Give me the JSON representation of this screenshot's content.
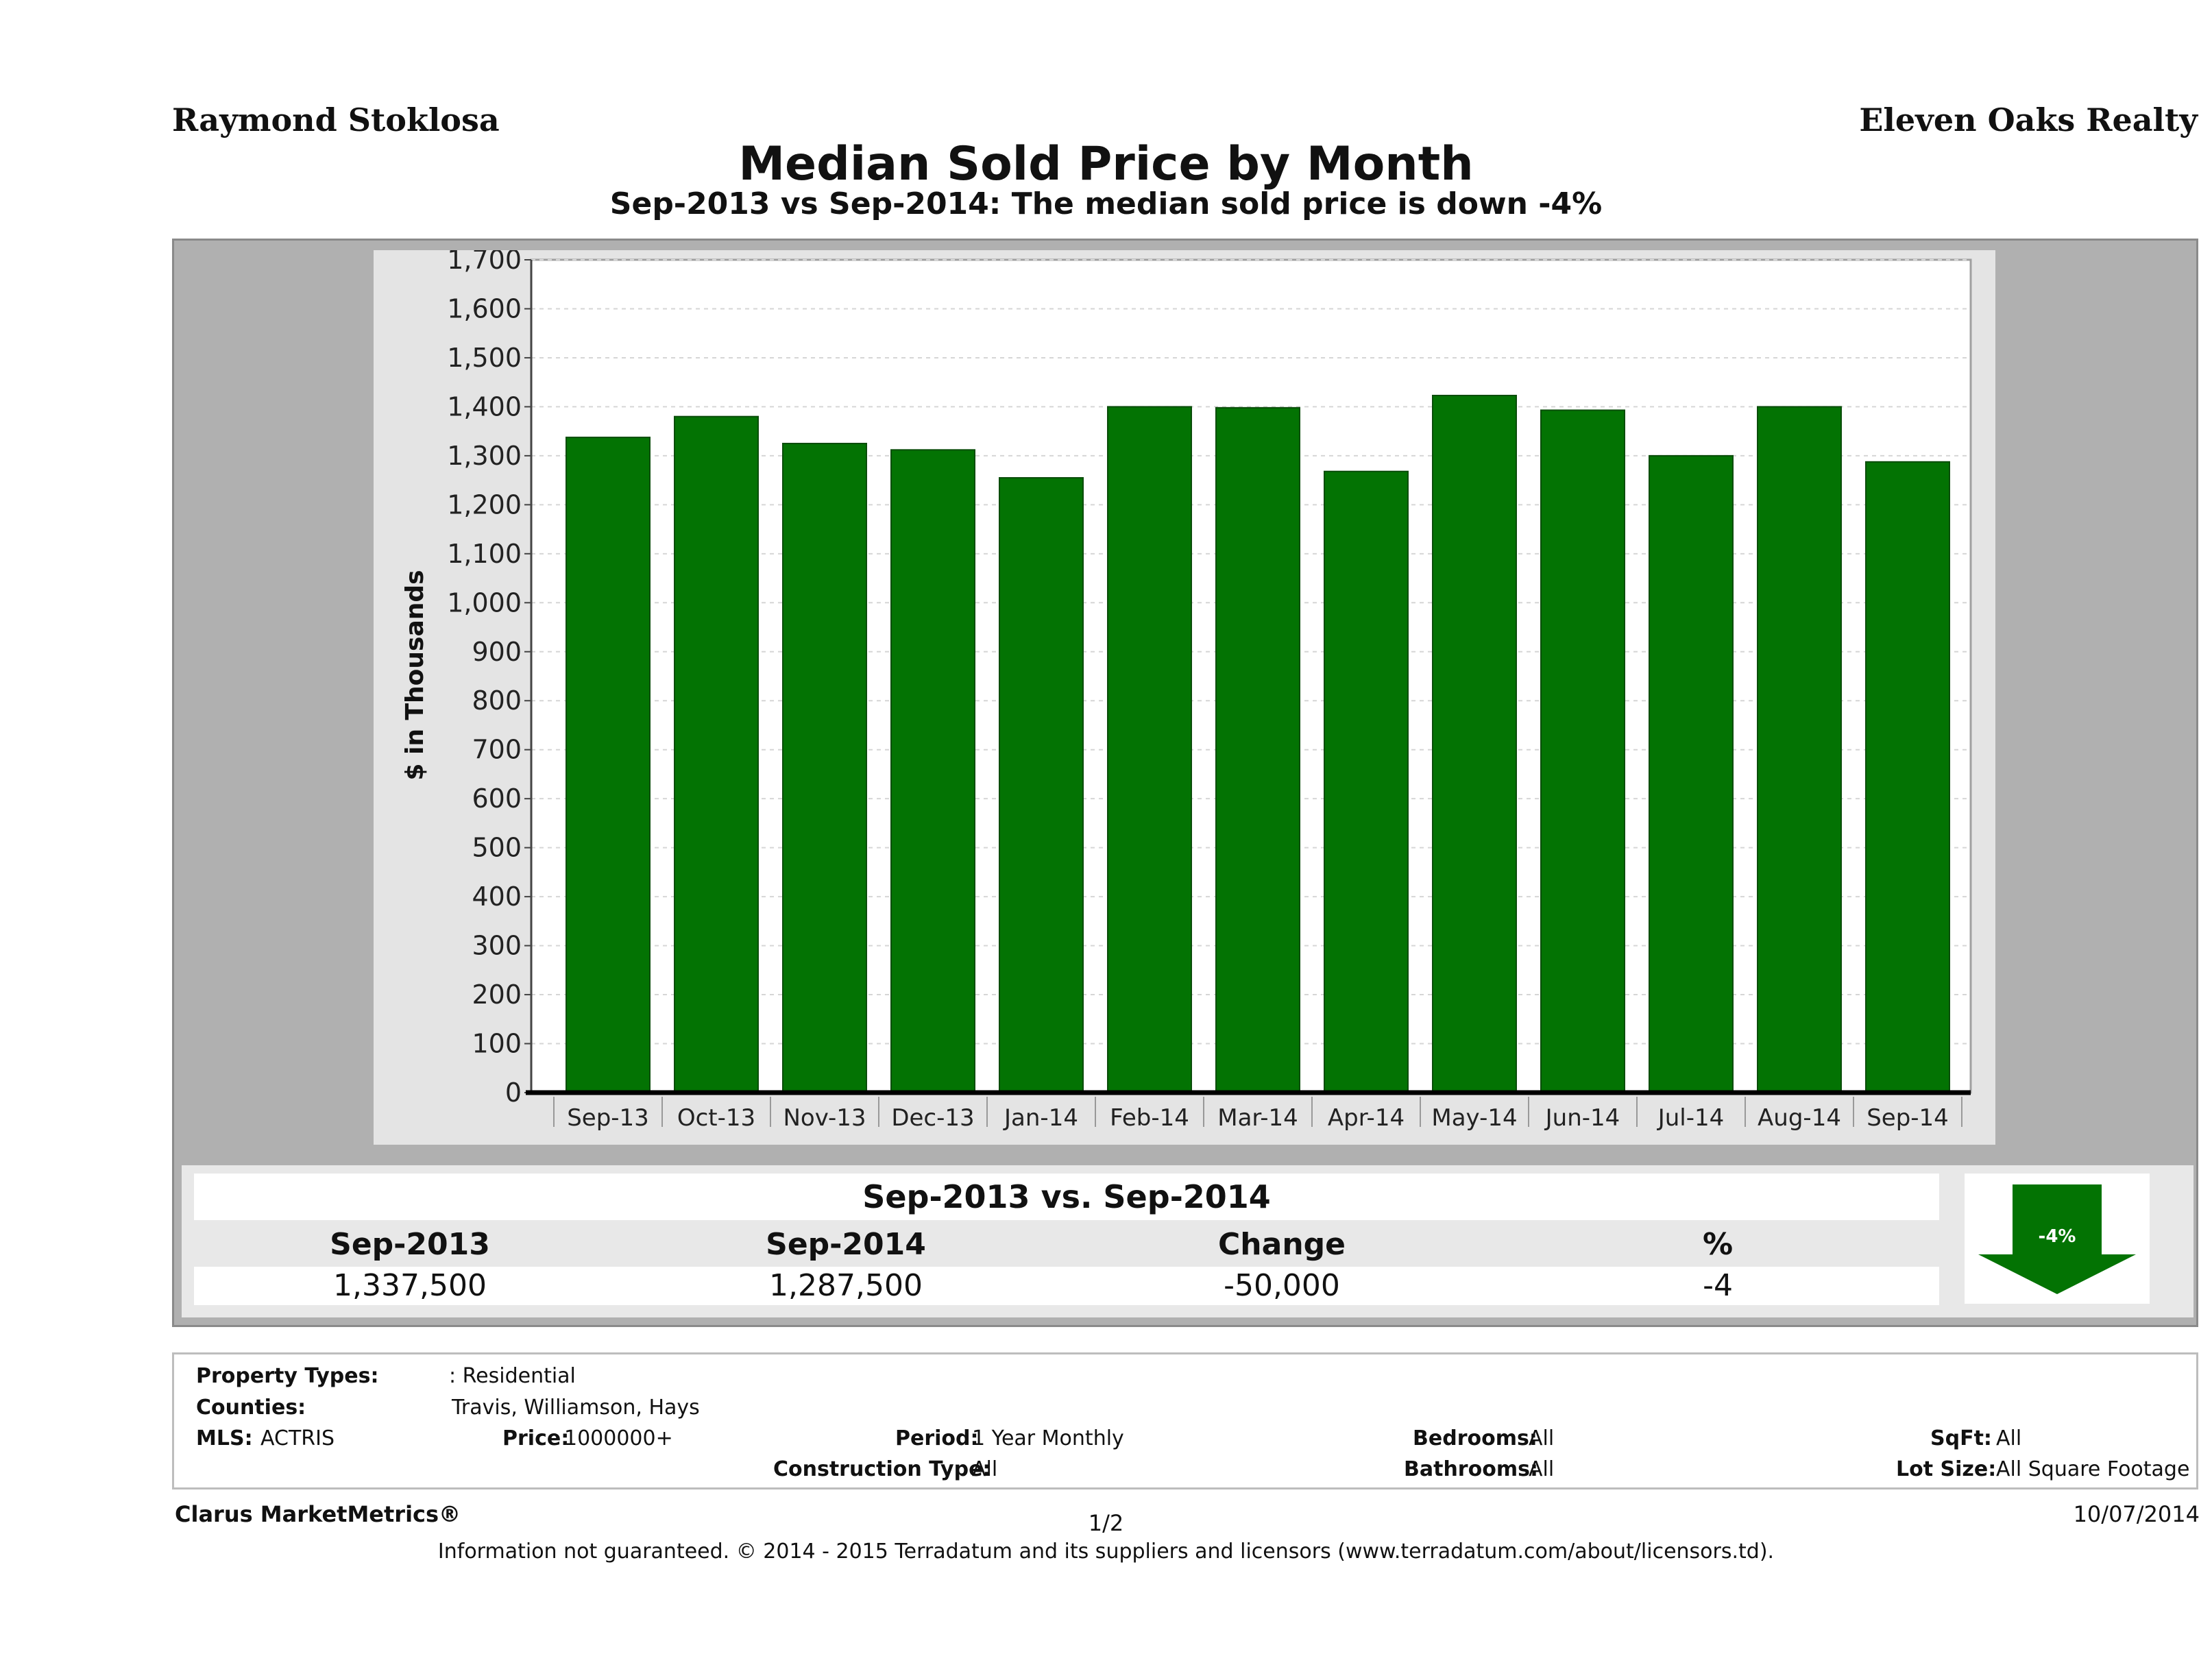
{
  "header": {
    "agent": "Raymond Stoklosa",
    "brokerage": "Eleven Oaks Realty",
    "title": "Median Sold Price by Month",
    "subtitle": "Sep-2013 vs Sep-2014: The median sold price is down -4%"
  },
  "chart_data": {
    "type": "bar",
    "ylabel": "$ in Thousands",
    "xlabel": "",
    "ylim": [
      0,
      1700
    ],
    "ytick_step": 100,
    "grid": true,
    "bar_color": "#037303",
    "categories": [
      "Sep-13",
      "Oct-13",
      "Nov-13",
      "Dec-13",
      "Jan-14",
      "Feb-14",
      "Mar-14",
      "Apr-14",
      "May-14",
      "Jun-14",
      "Jul-14",
      "Aug-14",
      "Sep-14"
    ],
    "values": [
      1337.5,
      1380,
      1325,
      1312,
      1255,
      1400,
      1398,
      1268,
      1423,
      1393,
      1300,
      1400,
      1287.5
    ]
  },
  "comparison": {
    "title": "Sep-2013 vs. Sep-2014",
    "headers": [
      "Sep-2013",
      "Sep-2014",
      "Change",
      "%"
    ],
    "values": [
      "1,337,500",
      "1,287,500",
      "-50,000",
      "-4"
    ],
    "arrow_label": "-4%",
    "arrow_color": "#037303"
  },
  "info": {
    "property_types_label": "Property Types:",
    "property_types_value": ": Residential",
    "counties_label": "Counties:",
    "counties_value": "Travis, Williamson, Hays",
    "mls_label": "MLS:",
    "mls_value": "ACTRIS",
    "price_label": "Price:",
    "price_value": "1000000+",
    "period_label": "Period:",
    "period_value": "1 Year Monthly",
    "construction_label": "Construction Type:",
    "construction_value": "All",
    "bedrooms_label": "Bedrooms:",
    "bedrooms_value": "All",
    "bathrooms_label": "Bathrooms:",
    "bathrooms_value": "All",
    "sqft_label": "SqFt:",
    "sqft_value": "All",
    "lot_label": "Lot Size:",
    "lot_value": "All Square Footage"
  },
  "footer": {
    "brand": "Clarus MarketMetrics®",
    "page": "1/2",
    "date": "10/07/2014",
    "disclaimer": "Information not guaranteed. © 2014 - 2015 Terradatum and its suppliers and licensors (www.terradatum.com/about/licensors.td)."
  }
}
